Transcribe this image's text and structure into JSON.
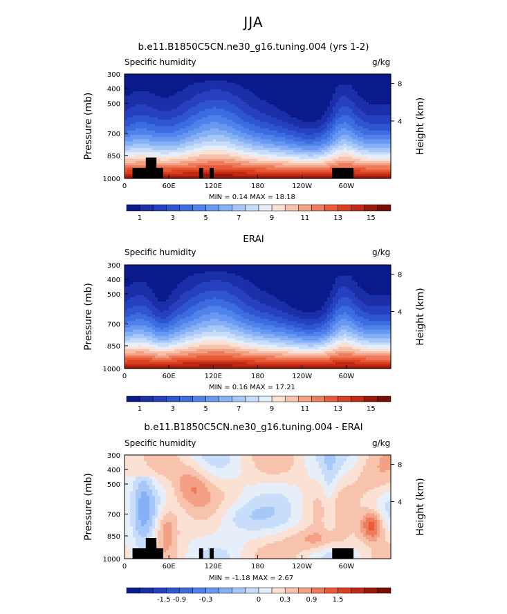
{
  "page": {
    "title": "JJA"
  },
  "chart_data": [
    {
      "type": "heatmap",
      "title": "b.e11.B1850C5CN.ne30_g16.tuning.004 (yrs 1-2)",
      "subtitle_left": "Specific humidity",
      "subtitle_right": "g/kg",
      "ylabel": "Pressure (mb)",
      "ylabel_right": "Height (km)",
      "x_ticks": [
        "0",
        "60E",
        "120E",
        "180",
        "120W",
        "60W"
      ],
      "y_ticks": [
        "300",
        "400",
        "500",
        "700",
        "850",
        "1000"
      ],
      "y_right_ticks": [
        "8",
        "4"
      ],
      "stats": "MIN =    0.14   MAX =   18.18",
      "colorbar_labels": [
        "1",
        "3",
        "5",
        "7",
        "9",
        "11",
        "13",
        "15"
      ]
    },
    {
      "type": "heatmap",
      "title": "ERAI",
      "subtitle_left": "Specific humidity",
      "subtitle_right": "g/kg",
      "ylabel": "Pressure (mb)",
      "ylabel_right": "Height (km)",
      "x_ticks": [
        "0",
        "60E",
        "120E",
        "180",
        "120W",
        "60W"
      ],
      "y_ticks": [
        "300",
        "400",
        "500",
        "700",
        "850",
        "1000"
      ],
      "y_right_ticks": [
        "8",
        "4"
      ],
      "stats": "MIN =    0.16   MAX =   17.21",
      "colorbar_labels": [
        "1",
        "3",
        "5",
        "7",
        "9",
        "11",
        "13",
        "15"
      ]
    },
    {
      "type": "heatmap",
      "title": "b.e11.B1850C5CN.ne30_g16.tuning.004 - ERAI",
      "subtitle_left": "Specific humidity",
      "subtitle_right": "g/kg",
      "ylabel": "Pressure (mb)",
      "ylabel_right": "Height (km)",
      "x_ticks": [
        "0",
        "60E",
        "120E",
        "180",
        "120W",
        "60W"
      ],
      "y_ticks": [
        "300",
        "400",
        "500",
        "700",
        "850",
        "1000"
      ],
      "y_right_ticks": [
        "8",
        "4"
      ],
      "stats": "MIN =   -1.18   MAX =    2.67",
      "colorbar_labels": [
        "-1.5",
        "-0.9",
        "-0.3",
        "0",
        "0.3",
        "0.9",
        "1.5"
      ]
    }
  ],
  "colors": {
    "abs": [
      "#0a1a8a",
      "#1a2fa8",
      "#2640c0",
      "#2f55d0",
      "#3d6ce0",
      "#4f82ea",
      "#6898f2",
      "#86b0f6",
      "#a7c7f8",
      "#c7ddfa",
      "#e6eefa",
      "#fbe1d4",
      "#f8c3ad",
      "#f3a084",
      "#ee7c5c",
      "#e85a38",
      "#d9401f",
      "#bf2a14",
      "#9a180c",
      "#7a0c06"
    ],
    "diff": [
      "#0a1a8a",
      "#1a2fa8",
      "#2640c0",
      "#2f55d0",
      "#3d6ce0",
      "#4f82ea",
      "#6898f2",
      "#86b0f6",
      "#a7c7f8",
      "#c7ddfa",
      "#e6eefa",
      "#fbe1d4",
      "#f8c3ad",
      "#f3a084",
      "#ee7c5c",
      "#e85a38",
      "#d9401f",
      "#bf2a14",
      "#9a180c",
      "#7a0c06"
    ]
  }
}
